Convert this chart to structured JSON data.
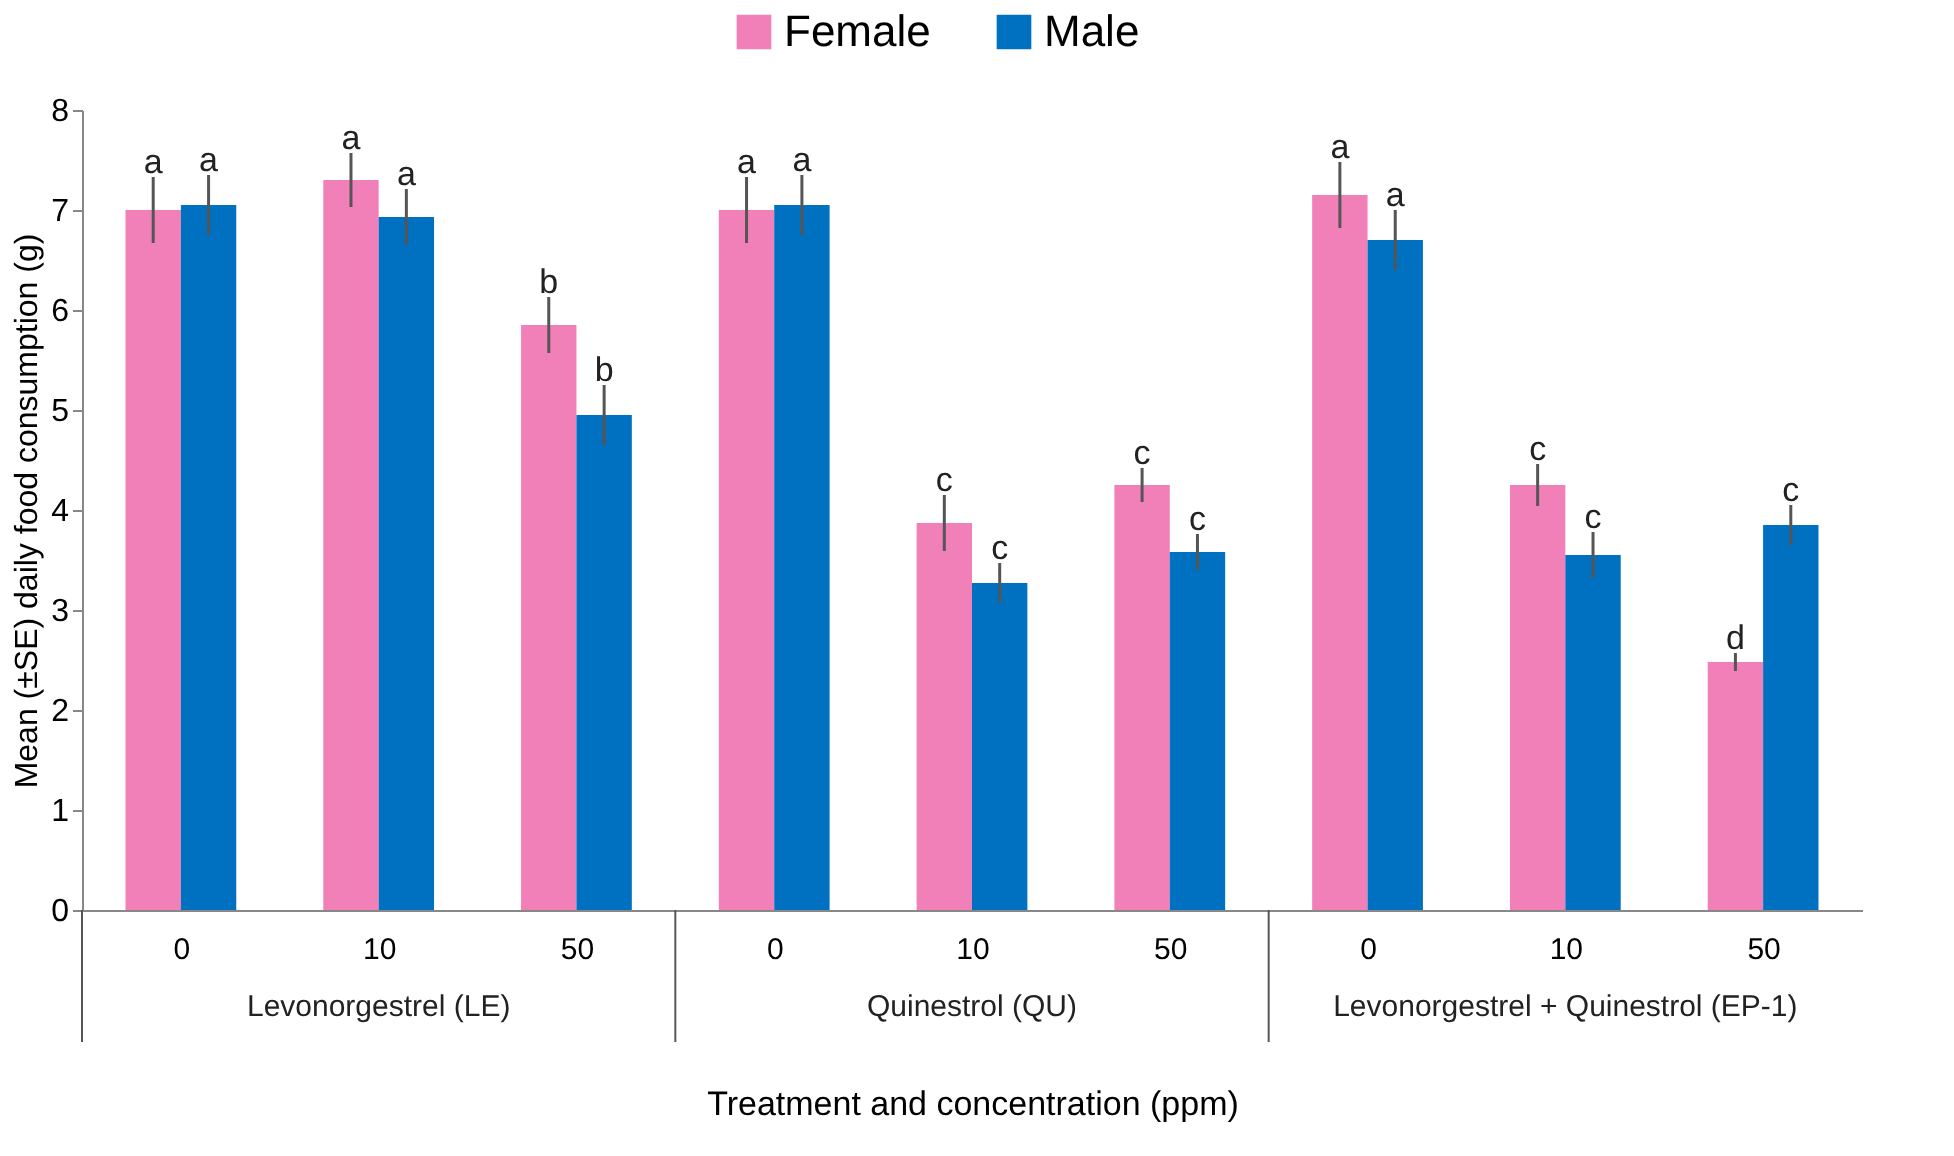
{
  "chart_data": {
    "type": "bar",
    "xlabel": "Treatment and concentration (ppm)",
    "ylabel": "Mean (±SE) daily food consumption (g)",
    "categories": [
      "0",
      "10",
      "50",
      "0",
      "10",
      "50",
      "0",
      "10",
      "50"
    ],
    "series": [
      {
        "name": "Female",
        "color": "#f17fb8",
        "values": [
          7.0,
          7.3,
          5.85,
          7.0,
          3.87,
          4.25,
          7.15,
          4.25,
          2.48
        ],
        "errors": [
          0.33,
          0.27,
          0.28,
          0.33,
          0.28,
          0.17,
          0.33,
          0.21,
          0.09
        ]
      },
      {
        "name": "Male",
        "color": "#0070c0",
        "values": [
          7.05,
          6.93,
          4.95,
          7.05,
          3.27,
          3.58,
          6.7,
          3.55,
          3.85
        ],
        "errors": [
          0.3,
          0.28,
          0.3,
          0.3,
          0.2,
          0.18,
          0.3,
          0.23,
          0.2
        ]
      }
    ],
    "annotations": [
      "a",
      "a",
      "a",
      "a",
      "b",
      "b",
      "a",
      "a",
      "c",
      "c",
      "c",
      "c",
      "a",
      "a",
      "c",
      "c",
      "d",
      "c",
      "Levonorgestrel (LE)",
      "Quinestrol (QU)",
      "Levonorgestrel + Quinestrol (EP-1)"
    ],
    "ylim": [
      0,
      8
    ],
    "yticks": [
      0,
      1,
      2,
      3,
      4,
      5,
      6,
      7,
      8
    ],
    "grid": false,
    "legend": "top"
  }
}
